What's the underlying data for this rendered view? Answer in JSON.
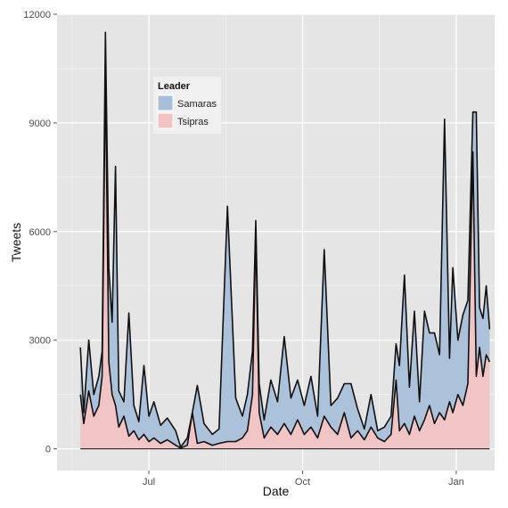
{
  "chart_data": {
    "type": "area",
    "title": "",
    "xlabel": "Date",
    "ylabel": "Tweets",
    "xlim": [
      "2012-05-07",
      "2013-01-24"
    ],
    "ylim": [
      -600,
      12000
    ],
    "x_ticks": [
      {
        "date": "2012-07-01",
        "label": "Jul"
      },
      {
        "date": "2012-10-01",
        "label": "Oct"
      },
      {
        "date": "2013-01-01",
        "label": "Jan"
      }
    ],
    "y_ticks": [
      0,
      3000,
      6000,
      9000,
      12000
    ],
    "grid": true,
    "stacked": true,
    "legend": {
      "title": "Leader",
      "placement": "top-left"
    },
    "series": [
      {
        "name": "Tsipras",
        "color": "#f1c3c3",
        "points": [
          [
            "2012-05-21",
            1500
          ],
          [
            "2012-05-23",
            700
          ],
          [
            "2012-05-26",
            1600
          ],
          [
            "2012-05-29",
            900
          ],
          [
            "2012-06-01",
            1200
          ],
          [
            "2012-06-03",
            2000
          ],
          [
            "2012-06-05",
            10500
          ],
          [
            "2012-06-07",
            2400
          ],
          [
            "2012-06-09",
            1500
          ],
          [
            "2012-06-11",
            1200
          ],
          [
            "2012-06-13",
            600
          ],
          [
            "2012-06-16",
            900
          ],
          [
            "2012-06-19",
            350
          ],
          [
            "2012-06-22",
            500
          ],
          [
            "2012-06-25",
            250
          ],
          [
            "2012-06-28",
            400
          ],
          [
            "2012-07-01",
            200
          ],
          [
            "2012-07-04",
            300
          ],
          [
            "2012-07-08",
            150
          ],
          [
            "2012-07-12",
            250
          ],
          [
            "2012-07-17",
            100
          ],
          [
            "2012-07-20",
            20
          ],
          [
            "2012-07-24",
            100
          ],
          [
            "2012-07-27",
            1000
          ],
          [
            "2012-07-30",
            150
          ],
          [
            "2012-08-03",
            200
          ],
          [
            "2012-08-08",
            100
          ],
          [
            "2012-08-12",
            150
          ],
          [
            "2012-08-17",
            200
          ],
          [
            "2012-08-22",
            200
          ],
          [
            "2012-08-26",
            300
          ],
          [
            "2012-08-29",
            500
          ],
          [
            "2012-09-01",
            1500
          ],
          [
            "2012-09-03",
            6000
          ],
          [
            "2012-09-05",
            1000
          ],
          [
            "2012-09-08",
            300
          ],
          [
            "2012-09-12",
            600
          ],
          [
            "2012-09-16",
            400
          ],
          [
            "2012-09-20",
            700
          ],
          [
            "2012-09-24",
            400
          ],
          [
            "2012-09-28",
            800
          ],
          [
            "2012-10-02",
            400
          ],
          [
            "2012-10-06",
            600
          ],
          [
            "2012-10-10",
            300
          ],
          [
            "2012-10-14",
            900
          ],
          [
            "2012-10-18",
            600
          ],
          [
            "2012-10-22",
            400
          ],
          [
            "2012-10-26",
            1000
          ],
          [
            "2012-10-30",
            300
          ],
          [
            "2012-11-03",
            500
          ],
          [
            "2012-11-07",
            250
          ],
          [
            "2012-11-11",
            600
          ],
          [
            "2012-11-15",
            300
          ],
          [
            "2012-11-19",
            200
          ],
          [
            "2012-11-23",
            400
          ],
          [
            "2012-11-26",
            1900
          ],
          [
            "2012-11-28",
            500
          ],
          [
            "2012-12-01",
            700
          ],
          [
            "2012-12-04",
            400
          ],
          [
            "2012-12-07",
            900
          ],
          [
            "2012-12-10",
            500
          ],
          [
            "2012-12-13",
            800
          ],
          [
            "2012-12-16",
            1200
          ],
          [
            "2012-12-19",
            700
          ],
          [
            "2012-12-22",
            1000
          ],
          [
            "2012-12-25",
            800
          ],
          [
            "2012-12-28",
            1300
          ],
          [
            "2012-12-30",
            1000
          ],
          [
            "2013-01-02",
            1500
          ],
          [
            "2013-01-05",
            1200
          ],
          [
            "2013-01-08",
            1800
          ],
          [
            "2013-01-11",
            8200
          ],
          [
            "2013-01-13",
            2000
          ],
          [
            "2013-01-15",
            2800
          ],
          [
            "2013-01-17",
            2000
          ],
          [
            "2013-01-19",
            2600
          ],
          [
            "2013-01-21",
            2400
          ]
        ]
      },
      {
        "name": "Samaras",
        "color": "#a9bfd9",
        "points": [
          [
            "2012-05-21",
            1300
          ],
          [
            "2012-05-23",
            300
          ],
          [
            "2012-05-26",
            1400
          ],
          [
            "2012-05-29",
            600
          ],
          [
            "2012-06-01",
            800
          ],
          [
            "2012-06-03",
            700
          ],
          [
            "2012-06-05",
            1000
          ],
          [
            "2012-06-07",
            2600
          ],
          [
            "2012-06-09",
            2000
          ],
          [
            "2012-06-11",
            6600
          ],
          [
            "2012-06-13",
            1000
          ],
          [
            "2012-06-16",
            400
          ],
          [
            "2012-06-19",
            3400
          ],
          [
            "2012-06-22",
            700
          ],
          [
            "2012-06-25",
            500
          ],
          [
            "2012-06-28",
            1900
          ],
          [
            "2012-07-01",
            700
          ],
          [
            "2012-07-04",
            1000
          ],
          [
            "2012-07-08",
            500
          ],
          [
            "2012-07-12",
            600
          ],
          [
            "2012-07-17",
            400
          ],
          [
            "2012-07-20",
            30
          ],
          [
            "2012-07-24",
            200
          ],
          [
            "2012-07-27",
            0
          ],
          [
            "2012-07-30",
            1600
          ],
          [
            "2012-08-03",
            500
          ],
          [
            "2012-08-08",
            300
          ],
          [
            "2012-08-12",
            400
          ],
          [
            "2012-08-17",
            6500
          ],
          [
            "2012-08-22",
            1200
          ],
          [
            "2012-08-26",
            600
          ],
          [
            "2012-08-29",
            1000
          ],
          [
            "2012-09-01",
            1200
          ],
          [
            "2012-09-03",
            300
          ],
          [
            "2012-09-05",
            800
          ],
          [
            "2012-09-08",
            500
          ],
          [
            "2012-09-12",
            1300
          ],
          [
            "2012-09-16",
            900
          ],
          [
            "2012-09-20",
            2400
          ],
          [
            "2012-09-24",
            1000
          ],
          [
            "2012-09-28",
            1100
          ],
          [
            "2012-10-02",
            800
          ],
          [
            "2012-10-06",
            1400
          ],
          [
            "2012-10-10",
            600
          ],
          [
            "2012-10-14",
            4600
          ],
          [
            "2012-10-18",
            600
          ],
          [
            "2012-10-22",
            1000
          ],
          [
            "2012-10-26",
            800
          ],
          [
            "2012-10-30",
            1500
          ],
          [
            "2012-11-03",
            600
          ],
          [
            "2012-11-07",
            300
          ],
          [
            "2012-11-11",
            900
          ],
          [
            "2012-11-15",
            200
          ],
          [
            "2012-11-19",
            400
          ],
          [
            "2012-11-23",
            500
          ],
          [
            "2012-11-26",
            1000
          ],
          [
            "2012-11-28",
            1800
          ],
          [
            "2012-12-01",
            4100
          ],
          [
            "2012-12-04",
            1300
          ],
          [
            "2012-12-07",
            2900
          ],
          [
            "2012-12-10",
            800
          ],
          [
            "2012-12-13",
            3000
          ],
          [
            "2012-12-16",
            2000
          ],
          [
            "2012-12-19",
            2500
          ],
          [
            "2012-12-22",
            1600
          ],
          [
            "2012-12-25",
            8300
          ],
          [
            "2012-12-28",
            1200
          ],
          [
            "2012-12-30",
            4000
          ],
          [
            "2013-01-02",
            1500
          ],
          [
            "2013-01-05",
            2500
          ],
          [
            "2013-01-08",
            2300
          ],
          [
            "2013-01-11",
            1100
          ],
          [
            "2013-01-13",
            7300
          ],
          [
            "2013-01-15",
            1100
          ],
          [
            "2013-01-17",
            1600
          ],
          [
            "2013-01-19",
            1900
          ],
          [
            "2013-01-21",
            900
          ]
        ]
      }
    ]
  }
}
